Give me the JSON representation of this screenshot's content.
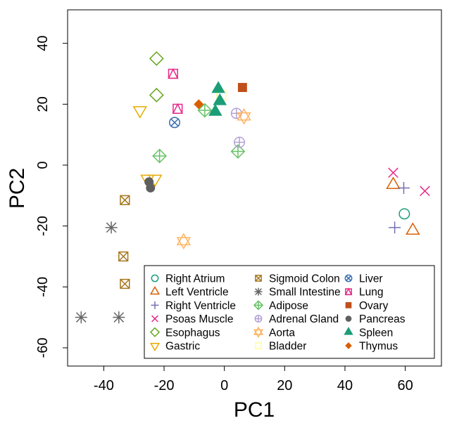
{
  "chart_data": {
    "type": "scatter",
    "title": "",
    "xlabel": "PC1",
    "ylabel": "PC2",
    "xlim": [
      -52,
      72
    ],
    "ylim": [
      -66,
      51
    ],
    "xticks": [
      -40,
      -20,
      0,
      20,
      40,
      60
    ],
    "yticks": [
      -60,
      -40,
      -20,
      0,
      20,
      40
    ],
    "xtick_labels": [
      "-40",
      "-20",
      "0",
      "20",
      "40",
      "60"
    ],
    "ytick_labels": [
      "-60",
      "-40",
      "-20",
      "0",
      "20",
      "40"
    ],
    "grid": false,
    "legend_position": "bottom-right",
    "series": [
      {
        "name": "Right Atrium",
        "color": "#1b9e77",
        "marker": "circle-open",
        "points": [
          [
            59.7,
            -16
          ]
        ]
      },
      {
        "name": "Left Ventricle",
        "color": "#d95f02",
        "marker": "triangle-open",
        "points": [
          [
            62.5,
            -21.5
          ],
          [
            56,
            -6.5
          ]
        ]
      },
      {
        "name": "Right Ventricle",
        "color": "#7570b3",
        "marker": "plus",
        "points": [
          [
            56.5,
            -20.5
          ],
          [
            59.5,
            -7.5
          ]
        ]
      },
      {
        "name": "Psoas Muscle",
        "color": "#e7298a",
        "marker": "cross",
        "points": [
          [
            56,
            -2.5
          ],
          [
            66.5,
            -8.5
          ]
        ]
      },
      {
        "name": "Esophagus",
        "color": "#66a61e",
        "marker": "diamond-open",
        "points": [
          [
            -22.5,
            35
          ],
          [
            -22.5,
            23
          ]
        ]
      },
      {
        "name": "Gastric",
        "color": "#e6ab02",
        "marker": "triangle-down-open",
        "points": [
          [
            -28,
            18
          ],
          [
            -25.5,
            -4.5
          ],
          [
            -23,
            -4.5
          ]
        ]
      },
      {
        "name": "Sigmoid Colon",
        "color": "#a6761d",
        "marker": "square-cross",
        "points": [
          [
            -33,
            -11.5
          ],
          [
            -33.5,
            -30
          ],
          [
            -33,
            -39
          ]
        ]
      },
      {
        "name": "Small Intestine",
        "color": "#666666",
        "marker": "asterisk",
        "points": [
          [
            -37.5,
            -20.5
          ],
          [
            -47.5,
            -50
          ],
          [
            -35,
            -50
          ]
        ]
      },
      {
        "name": "Adipose",
        "color": "#66c266",
        "marker": "diamond-plus",
        "points": [
          [
            -21.5,
            3
          ],
          [
            -6.5,
            18
          ],
          [
            4.5,
            4.5
          ]
        ]
      },
      {
        "name": "Adrenal Gland",
        "color": "#b3a0d6",
        "marker": "circle-plus",
        "points": [
          [
            4,
            17
          ],
          [
            5,
            7.5
          ]
        ]
      },
      {
        "name": "Aorta",
        "color": "#fdb462",
        "marker": "star-of-david",
        "points": [
          [
            -13.5,
            -25
          ],
          [
            6.5,
            16
          ]
        ]
      },
      {
        "name": "Bladder",
        "color": "#ffff99",
        "marker": "square-open",
        "points": [
          [
            -1,
            23
          ]
        ]
      },
      {
        "name": "Liver",
        "color": "#386cb0",
        "marker": "circle-cross",
        "points": [
          [
            -16.5,
            14
          ]
        ]
      },
      {
        "name": "Lung",
        "color": "#e7298a",
        "marker": "square-triangle",
        "points": [
          [
            -17,
            30
          ],
          [
            -15.5,
            18.5
          ]
        ]
      },
      {
        "name": "Ovary",
        "color": "#c0501a",
        "marker": "square-filled",
        "points": [
          [
            6,
            25.5
          ]
        ]
      },
      {
        "name": "Pancreas",
        "color": "#5f5f5f",
        "marker": "circle-filled",
        "points": [
          [
            -25,
            -5.5
          ],
          [
            -24.5,
            -7.5
          ]
        ]
      },
      {
        "name": "Spleen",
        "color": "#1b9e77",
        "marker": "triangle-filled",
        "points": [
          [
            -2,
            25
          ],
          [
            -3,
            17.5
          ],
          [
            -1.5,
            21
          ]
        ]
      },
      {
        "name": "Thymus",
        "color": "#d95f02",
        "marker": "diamond-filled",
        "points": [
          [
            -8.5,
            20
          ]
        ]
      }
    ]
  }
}
